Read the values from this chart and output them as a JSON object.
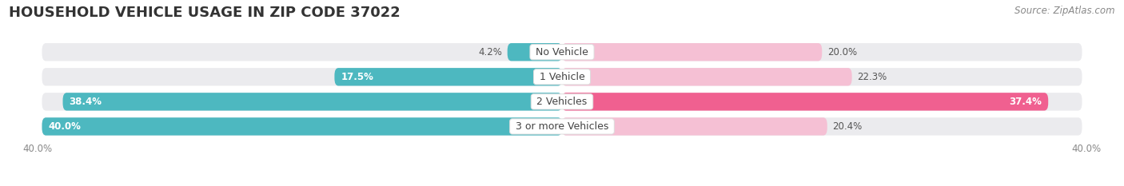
{
  "title": "HOUSEHOLD VEHICLE USAGE IN ZIP CODE 37022",
  "source": "Source: ZipAtlas.com",
  "categories": [
    "No Vehicle",
    "1 Vehicle",
    "2 Vehicles",
    "3 or more Vehicles"
  ],
  "owner_values": [
    4.2,
    17.5,
    38.4,
    40.0
  ],
  "renter_values": [
    20.0,
    22.3,
    37.4,
    20.4
  ],
  "owner_color": "#4DB8C0",
  "renter_color": "#F08BAA",
  "renter_color_bright": "#F06090",
  "owner_color_light": "#A8DDE0",
  "renter_color_light": "#F5C0D4",
  "bar_bg_color": "#EBEBEE",
  "max_value": 40.0,
  "title_fontsize": 13,
  "source_fontsize": 8.5,
  "label_fontsize": 8.5,
  "cat_fontsize": 9,
  "background_color": "#FFFFFF",
  "bar_gap": 0.18,
  "bar_height": 0.72
}
